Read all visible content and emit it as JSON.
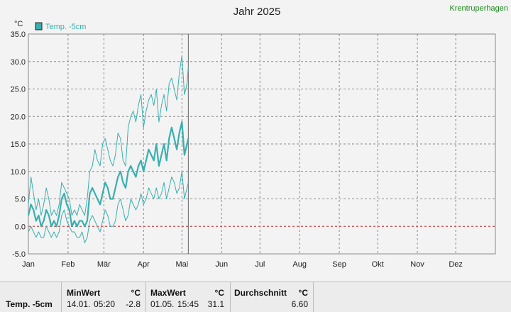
{
  "header": {
    "station": "Krentruperhagen"
  },
  "chart_data": {
    "type": "line",
    "title": "Jahr 2025",
    "ylabel": "°C",
    "ylim": [
      -5,
      35
    ],
    "yticks": [
      "-5.0",
      "0.0",
      "5.0",
      "10.0",
      "15.0",
      "20.0",
      "25.0",
      "30.0",
      "35.0"
    ],
    "months": [
      "Jan",
      "Feb",
      "Mär",
      "Apr",
      "Mai",
      "Jun",
      "Jul",
      "Aug",
      "Sep",
      "Okt",
      "Nov",
      "Dez"
    ],
    "x_unit": "day of year",
    "current_day": 126,
    "reference_line": 0,
    "grid": true,
    "legend": "Temp. -5cm",
    "color": "#3aafaf",
    "series": [
      {
        "role": "max",
        "x": [
          1,
          3,
          5,
          7,
          9,
          11,
          13,
          15,
          17,
          19,
          21,
          23,
          25,
          27,
          29,
          31,
          33,
          35,
          37,
          39,
          41,
          43,
          45,
          47,
          49,
          51,
          53,
          55,
          57,
          59,
          61,
          63,
          65,
          67,
          69,
          71,
          73,
          75,
          77,
          79,
          81,
          83,
          85,
          87,
          89,
          91,
          93,
          95,
          97,
          99,
          101,
          103,
          105,
          107,
          109,
          111,
          113,
          115,
          117,
          119,
          121,
          123,
          125,
          126
        ],
        "values": [
          4,
          9,
          6,
          3,
          5,
          2,
          4,
          7,
          5,
          2,
          3,
          2,
          4,
          8,
          7,
          6,
          5,
          2,
          3,
          2,
          4,
          3,
          2,
          5,
          10,
          11,
          14,
          12,
          11,
          15,
          16,
          14,
          12,
          11,
          13,
          17,
          16,
          12,
          11,
          18,
          20,
          21,
          19,
          22,
          24,
          18,
          21,
          23,
          24,
          22,
          25,
          19,
          22,
          24,
          21,
          26,
          27,
          25,
          23,
          28,
          31,
          24,
          26,
          29
        ]
      },
      {
        "role": "mean",
        "x": [
          1,
          3,
          5,
          7,
          9,
          11,
          13,
          15,
          17,
          19,
          21,
          23,
          25,
          27,
          29,
          31,
          33,
          35,
          37,
          39,
          41,
          43,
          45,
          47,
          49,
          51,
          53,
          55,
          57,
          59,
          61,
          63,
          65,
          67,
          69,
          71,
          73,
          75,
          77,
          79,
          81,
          83,
          85,
          87,
          89,
          91,
          93,
          95,
          97,
          99,
          101,
          103,
          105,
          107,
          109,
          111,
          113,
          115,
          117,
          119,
          121,
          123,
          125,
          126
        ],
        "values": [
          2,
          4,
          3,
          1,
          2,
          0,
          1,
          3,
          2,
          0,
          1,
          0,
          2,
          5,
          6,
          4,
          3,
          0,
          1,
          0,
          1,
          1,
          0,
          1,
          6,
          7,
          6,
          5,
          4,
          6,
          8,
          7,
          5,
          5,
          7,
          9,
          10,
          8,
          7,
          10,
          11,
          10,
          9,
          11,
          12,
          10,
          12,
          14,
          13,
          12,
          15,
          11,
          13,
          15,
          12,
          16,
          18,
          16,
          14,
          17,
          19,
          13,
          15,
          16
        ]
      },
      {
        "role": "min",
        "x": [
          1,
          3,
          5,
          7,
          9,
          11,
          13,
          15,
          17,
          19,
          21,
          23,
          25,
          27,
          29,
          31,
          33,
          35,
          37,
          39,
          41,
          43,
          45,
          47,
          49,
          51,
          53,
          55,
          57,
          59,
          61,
          63,
          65,
          67,
          69,
          71,
          73,
          75,
          77,
          79,
          81,
          83,
          85,
          87,
          89,
          91,
          93,
          95,
          97,
          99,
          101,
          103,
          105,
          107,
          109,
          111,
          113,
          115,
          117,
          119,
          121,
          123,
          125,
          126
        ],
        "values": [
          -1,
          0,
          -1,
          -2,
          -1,
          -2,
          -2,
          0,
          -1,
          -2,
          -1,
          -2,
          -1,
          2,
          3,
          1,
          0,
          -1,
          -1,
          -2,
          -2,
          -1,
          -3,
          -2,
          1,
          2,
          1,
          0,
          -1,
          1,
          3,
          2,
          0,
          0,
          1,
          4,
          5,
          3,
          1,
          2,
          5,
          4,
          3,
          4,
          6,
          4,
          5,
          7,
          6,
          5,
          7,
          5,
          6,
          8,
          5,
          7,
          9,
          8,
          6,
          7,
          10,
          5,
          7,
          8
        ]
      }
    ]
  },
  "stats": {
    "row_label": "Temp. -5cm",
    "unit": "°C",
    "min": {
      "label": "MinWert",
      "date": "14.01.",
      "time": "05:20",
      "value": "-2.8"
    },
    "max": {
      "label": "MaxWert",
      "date": "01.05.",
      "time": "15:45",
      "value": "31.1"
    },
    "avg": {
      "label": "Durchschnitt",
      "value": "6.60"
    }
  }
}
